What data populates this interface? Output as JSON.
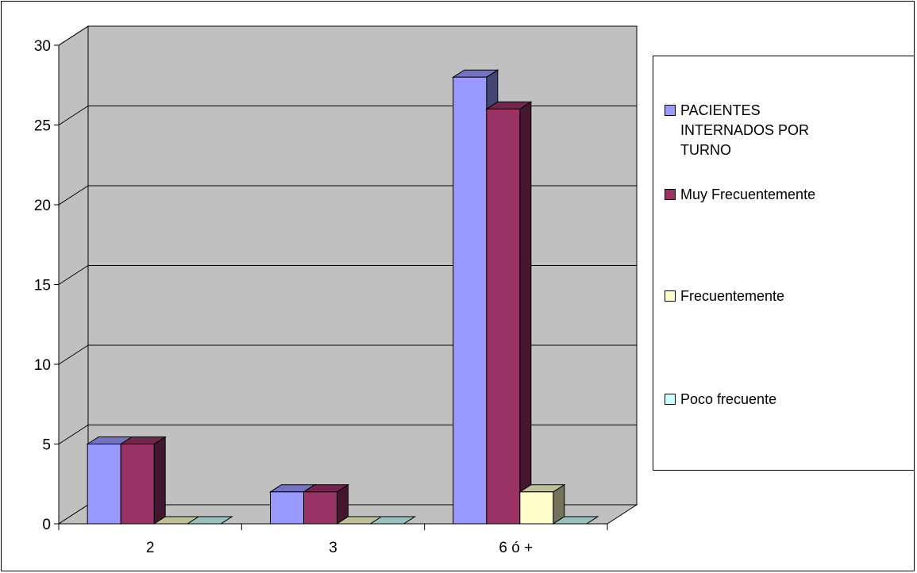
{
  "chart_data": {
    "type": "bar",
    "title": "",
    "xlabel": "",
    "ylabel": "",
    "categories": [
      "2",
      "3",
      "6 ó +"
    ],
    "series": [
      {
        "name": "PACIENTES INTERNADOS POR TURNO",
        "values": [
          5,
          2,
          28
        ],
        "color": "#9999ff"
      },
      {
        "name": "Muy Frecuentemente",
        "values": [
          5,
          2,
          26
        ],
        "color": "#993366"
      },
      {
        "name": "Frecuentemente",
        "values": [
          0,
          0,
          2
        ],
        "color": "#ffffcc"
      },
      {
        "name": "Poco frecuente",
        "values": [
          0,
          0,
          0
        ],
        "color": "#ccffff"
      }
    ],
    "ylim": [
      0,
      30
    ],
    "yticks": [
      "0",
      "5",
      "10",
      "15",
      "20",
      "25",
      "30"
    ],
    "grid": true,
    "three_d": true,
    "wall_color": "#c0c0c0",
    "legend_position": "right"
  }
}
